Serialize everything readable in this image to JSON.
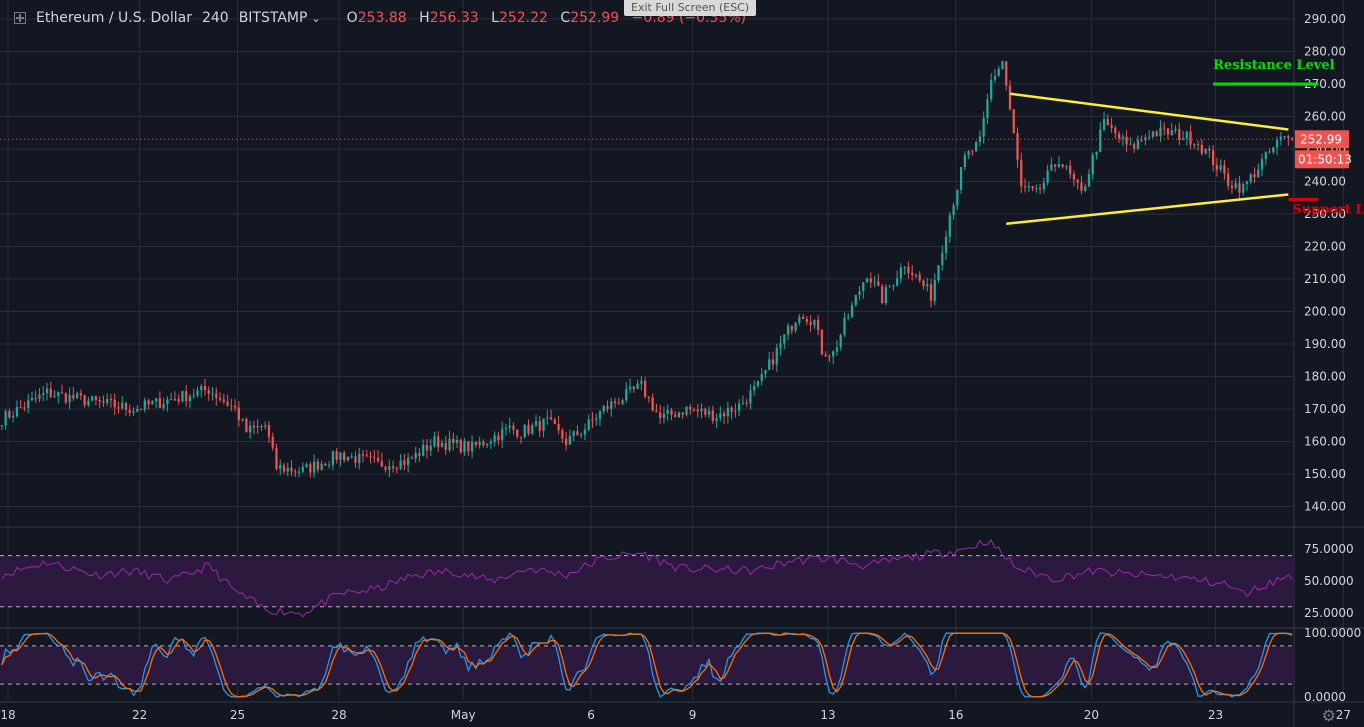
{
  "header": {
    "symbol": "Ethereum / U.S. Dollar",
    "timeframe": "240",
    "exchange": "BITSTAMP",
    "open_label": "O",
    "open": "253.88",
    "high_label": "H",
    "high": "256.33",
    "low_label": "L",
    "low": "252.22",
    "close_label": "C",
    "close": "252.99",
    "change": "−0.89 (−0.35%)"
  },
  "exit_fullscreen_label": "Exit Full Screen (ESC)",
  "colors": {
    "bull": "#26a69a",
    "bear": "#ef5350",
    "triangle": "#ffeb3b",
    "resistance": "#00e000",
    "support": "#e00000",
    "rsi": "#9c27b0",
    "stoch_k": "#2196f3",
    "stoch_d": "#ff6d00",
    "bg": "#131722"
  },
  "chart_data": {
    "type": "candlestick",
    "price_axis": {
      "ticks": [
        "290.00",
        "280.00",
        "270.00",
        "260.00",
        "250.00",
        "240.00",
        "230.00",
        "220.00",
        "210.00",
        "200.00",
        "190.00",
        "180.00",
        "170.00",
        "160.00",
        "150.00",
        "140.00"
      ],
      "ylim": [
        134,
        294
      ]
    },
    "x_axis": {
      "labels": [
        "18",
        "22",
        "25",
        "28",
        "May",
        "6",
        "9",
        "13",
        "16",
        "20",
        "23",
        "27"
      ]
    },
    "last_price": "252.99",
    "countdown": "01:50:13",
    "anchors": [
      [
        0,
        167
      ],
      [
        12,
        175
      ],
      [
        25,
        172
      ],
      [
        35,
        170
      ],
      [
        45,
        173
      ],
      [
        55,
        176
      ],
      [
        62,
        170
      ],
      [
        65,
        163
      ],
      [
        70,
        165
      ],
      [
        73,
        152
      ],
      [
        80,
        151
      ],
      [
        90,
        156
      ],
      [
        100,
        153
      ],
      [
        108,
        154
      ],
      [
        115,
        160
      ],
      [
        125,
        158
      ],
      [
        135,
        164
      ],
      [
        138,
        163
      ],
      [
        145,
        166
      ],
      [
        150,
        160
      ],
      [
        155,
        164
      ],
      [
        160,
        170
      ],
      [
        170,
        177
      ],
      [
        175,
        167
      ],
      [
        182,
        170
      ],
      [
        190,
        168
      ],
      [
        196,
        171
      ],
      [
        201,
        177
      ],
      [
        208,
        192
      ],
      [
        212,
        200
      ],
      [
        216,
        197
      ],
      [
        218,
        188
      ],
      [
        221,
        187
      ],
      [
        224,
        196
      ],
      [
        230,
        212
      ],
      [
        234,
        204
      ],
      [
        240,
        215
      ],
      [
        247,
        205
      ],
      [
        252,
        230
      ],
      [
        256,
        247
      ],
      [
        260,
        252
      ],
      [
        263,
        271
      ],
      [
        266,
        277
      ],
      [
        268,
        262
      ],
      [
        271,
        238
      ],
      [
        275,
        236
      ],
      [
        281,
        247
      ],
      [
        287,
        236
      ],
      [
        293,
        258
      ],
      [
        300,
        250
      ],
      [
        305,
        255
      ],
      [
        311,
        255
      ],
      [
        317,
        253
      ],
      [
        321,
        248
      ],
      [
        326,
        240
      ],
      [
        330,
        238
      ],
      [
        335,
        246
      ],
      [
        340,
        253
      ]
    ],
    "annotations": [
      {
        "type": "trendline",
        "name": "triangle-upper",
        "from": [
          268,
          267
        ],
        "to": [
          342,
          256
        ]
      },
      {
        "type": "trendline",
        "name": "triangle-lower",
        "from": [
          267,
          227
        ],
        "to": [
          342,
          236
        ]
      },
      {
        "type": "level",
        "label": "Resistance Level",
        "price": 270,
        "range": [
          322,
          350
        ]
      },
      {
        "type": "level",
        "label": "Support Level",
        "price": 234.5,
        "range": [
          342,
          350
        ]
      }
    ],
    "rsi": {
      "ticks": [
        "75.0000",
        "50.0000",
        "25.0000"
      ],
      "upper_band": 70,
      "lower_band": 30,
      "anchors": [
        [
          0,
          55
        ],
        [
          12,
          65
        ],
        [
          25,
          55
        ],
        [
          35,
          58
        ],
        [
          45,
          50
        ],
        [
          55,
          62
        ],
        [
          62,
          42
        ],
        [
          70,
          28
        ],
        [
          80,
          25
        ],
        [
          90,
          40
        ],
        [
          100,
          44
        ],
        [
          110,
          55
        ],
        [
          120,
          58
        ],
        [
          130,
          50
        ],
        [
          140,
          60
        ],
        [
          150,
          55
        ],
        [
          160,
          68
        ],
        [
          170,
          72
        ],
        [
          180,
          60
        ],
        [
          200,
          58
        ],
        [
          210,
          66
        ],
        [
          220,
          68
        ],
        [
          230,
          62
        ],
        [
          240,
          68
        ],
        [
          256,
          75
        ],
        [
          262,
          82
        ],
        [
          270,
          60
        ],
        [
          280,
          52
        ],
        [
          290,
          58
        ],
        [
          300,
          55
        ],
        [
          310,
          54
        ],
        [
          325,
          48
        ],
        [
          330,
          40
        ],
        [
          340,
          52
        ],
        [
          343,
          55
        ]
      ]
    },
    "stoch": {
      "ticks": [
        "100.0000",
        "0.0000"
      ],
      "upper_band": 80,
      "lower_band": 20,
      "period": 14
    }
  }
}
